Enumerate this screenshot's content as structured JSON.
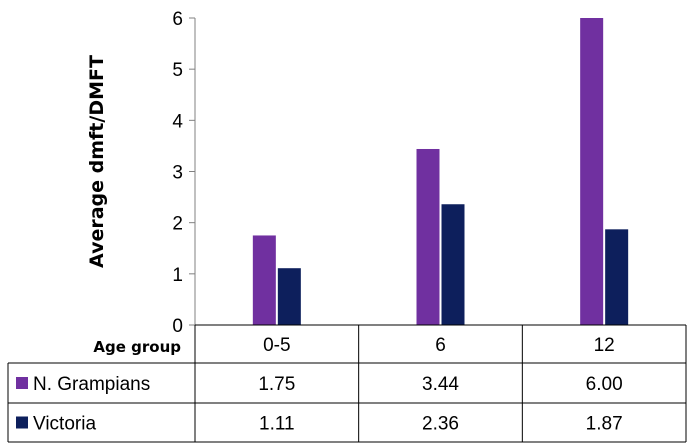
{
  "chart_data": {
    "type": "bar",
    "ylabel": "Average dmft/DMFT",
    "ylim": [
      0,
      6
    ],
    "yticks": [
      0,
      1,
      2,
      3,
      4,
      5,
      6
    ],
    "categories": [
      "0-5",
      "6",
      "12"
    ],
    "table_header": "Age group",
    "series": [
      {
        "name": "N. Grampians",
        "color": "#7030a0",
        "values": [
          1.75,
          3.44,
          6.0
        ],
        "labels": [
          "1.75",
          "3.44",
          "6.00"
        ]
      },
      {
        "name": "Victoria",
        "color": "#0d1f5c",
        "values": [
          1.11,
          2.36,
          1.87
        ],
        "labels": [
          "1.11",
          "2.36",
          "1.87"
        ]
      }
    ],
    "grid": false,
    "legend": "data-table"
  }
}
